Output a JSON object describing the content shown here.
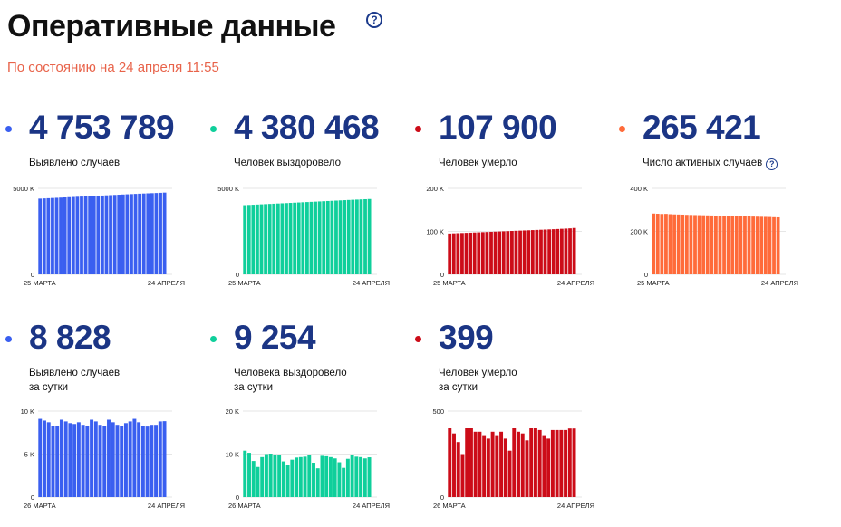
{
  "header": {
    "title": "Оперативные данные",
    "help_icon": "question-circle-icon",
    "subtitle": "По состоянию на 24 апреля 11:55"
  },
  "colors": {
    "blue": "#3a5ff0",
    "green": "#0fcf9b",
    "red": "#cc0c18",
    "orange": "#ff6b3a",
    "number": "#1b3585",
    "subtitle": "#e8634a"
  },
  "cards": [
    {
      "value": "4 753 789",
      "label_lines": [
        "Выявлено случаев"
      ],
      "help": false
    },
    {
      "value": "4 380 468",
      "label_lines": [
        "Человек выздоровело"
      ],
      "help": false
    },
    {
      "value": "107 900",
      "label_lines": [
        "Человек умерло"
      ],
      "help": false
    },
    {
      "value": "265 421",
      "label_lines": [
        "Число активных случаев"
      ],
      "help": true
    },
    {
      "value": "8 828",
      "label_lines": [
        "Выявлено случаев",
        "за сутки"
      ],
      "help": false
    },
    {
      "value": "9 254",
      "label_lines": [
        "Человека выздоровело",
        "за сутки"
      ],
      "help": false
    },
    {
      "value": "399",
      "label_lines": [
        "Человек умерло",
        "за сутки"
      ],
      "help": false
    }
  ],
  "chart_data": [
    {
      "type": "bar",
      "color": "blue",
      "yticks": [
        "5000 K",
        "0"
      ],
      "ytick_values": [
        5000000,
        0
      ],
      "ylim": [
        0,
        5000000
      ],
      "x_start": "25 МАРТА",
      "x_end": "24 АПРЕЛЯ",
      "values": [
        4402000,
        4414000,
        4426000,
        4438000,
        4450000,
        4462000,
        4474000,
        4486000,
        4498000,
        4510000,
        4522000,
        4534000,
        4546000,
        4558000,
        4570000,
        4582000,
        4594000,
        4606000,
        4618000,
        4630000,
        4642000,
        4654000,
        4666000,
        4678000,
        4690000,
        4700000,
        4710000,
        4720000,
        4730000,
        4741000,
        4753789
      ]
    },
    {
      "type": "bar",
      "color": "green",
      "yticks": [
        "5000 K",
        "0"
      ],
      "ytick_values": [
        5000000,
        0
      ],
      "ylim": [
        0,
        5000000
      ],
      "x_start": "25 МАРТА",
      "x_end": "24 АПРЕЛЯ",
      "values": [
        4025000,
        4037000,
        4049000,
        4061000,
        4073000,
        4085000,
        4097000,
        4109000,
        4121000,
        4133000,
        4145000,
        4157000,
        4169000,
        4181000,
        4193000,
        4205000,
        4217000,
        4229000,
        4241000,
        4253000,
        4265000,
        4277000,
        4289000,
        4301000,
        4313000,
        4325000,
        4336000,
        4347000,
        4358000,
        4369000,
        4380468
      ]
    },
    {
      "type": "bar",
      "color": "red",
      "yticks": [
        "200 K",
        "100 K",
        "0"
      ],
      "ytick_values": [
        200000,
        100000,
        0
      ],
      "ylim": [
        0,
        200000
      ],
      "x_start": "25 МАРТА",
      "x_end": "24 АПРЕЛЯ",
      "values": [
        95000,
        95400,
        95800,
        96200,
        96600,
        97000,
        97400,
        97800,
        98200,
        98600,
        99000,
        99400,
        99800,
        100200,
        100600,
        101000,
        101400,
        101800,
        102200,
        102600,
        103000,
        103400,
        103800,
        104200,
        104600,
        105000,
        105500,
        106000,
        106500,
        107000,
        107900
      ]
    },
    {
      "type": "bar",
      "color": "orange",
      "yticks": [
        "400 K",
        "200 K",
        "0"
      ],
      "ytick_values": [
        400000,
        200000,
        0
      ],
      "ylim": [
        0,
        400000
      ],
      "x_start": "25 МАРТА",
      "x_end": "24 АПРЕЛЯ",
      "values": [
        283000,
        282000,
        281000,
        281500,
        280000,
        279000,
        278500,
        278000,
        277000,
        276500,
        276000,
        275500,
        275000,
        274500,
        274000,
        273500,
        273000,
        272500,
        272000,
        271500,
        271000,
        270500,
        270000,
        269500,
        269000,
        268500,
        268000,
        267500,
        267000,
        266000,
        265421
      ]
    },
    {
      "type": "bar",
      "color": "blue",
      "yticks": [
        "10 K",
        "5 K",
        "0"
      ],
      "ytick_values": [
        10000,
        5000,
        0
      ],
      "ylim": [
        0,
        10000
      ],
      "x_start": "26 МАРТА",
      "x_end": "24 АПРЕЛЯ",
      "values": [
        9100,
        8900,
        8700,
        8300,
        8300,
        9000,
        8800,
        8600,
        8500,
        8700,
        8400,
        8300,
        9000,
        8800,
        8400,
        8300,
        9000,
        8700,
        8400,
        8300,
        8600,
        8800,
        9100,
        8700,
        8300,
        8200,
        8400,
        8400,
        8800,
        8828
      ]
    },
    {
      "type": "bar",
      "color": "green",
      "yticks": [
        "20 K",
        "10 K",
        "0"
      ],
      "ytick_values": [
        20000,
        10000,
        0
      ],
      "ylim": [
        0,
        20000
      ],
      "x_start": "26 МАРТА",
      "x_end": "24 АПРЕЛЯ",
      "values": [
        10800,
        10300,
        8400,
        7000,
        9300,
        10000,
        10100,
        9900,
        9700,
        8300,
        7400,
        8700,
        9200,
        9300,
        9400,
        9700,
        8000,
        6700,
        9600,
        9500,
        9300,
        9000,
        8100,
        6800,
        8900,
        9700,
        9400,
        9300,
        9000,
        9254
      ]
    },
    {
      "type": "bar",
      "color": "red",
      "yticks": [
        "500",
        "0"
      ],
      "ytick_values": [
        500,
        0
      ],
      "ylim": [
        0,
        500
      ],
      "x_start": "26 МАРТА",
      "x_end": "24 АПРЕЛЯ",
      "values": [
        400,
        370,
        320,
        250,
        400,
        400,
        380,
        380,
        360,
        340,
        380,
        360,
        380,
        340,
        270,
        400,
        380,
        370,
        330,
        400,
        400,
        390,
        360,
        340,
        390,
        390,
        390,
        390,
        399,
        399
      ]
    }
  ]
}
